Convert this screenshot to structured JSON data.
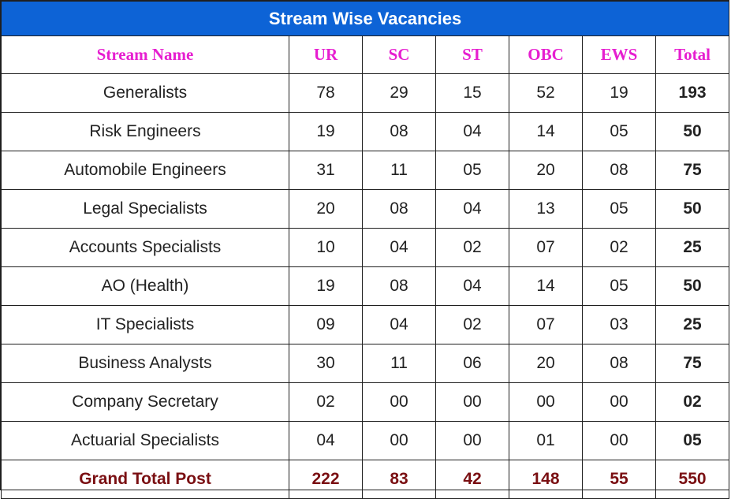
{
  "title": "Stream Wise Vacancies",
  "headers": [
    "Stream Name",
    "UR",
    "SC",
    "ST",
    "OBC",
    "EWS",
    "Total"
  ],
  "rows": [
    {
      "name": "Generalists",
      "ur": "78",
      "sc": "29",
      "st": "15",
      "obc": "52",
      "ews": "19",
      "total": "193"
    },
    {
      "name": "Risk  Engineers",
      "ur": "19",
      "sc": "08",
      "st": "04",
      "obc": "14",
      "ews": "05",
      "total": "50"
    },
    {
      "name": "Automobile Engineers",
      "ur": "31",
      "sc": "11",
      "st": "05",
      "obc": "20",
      "ews": "08",
      "total": "75"
    },
    {
      "name": "Legal Specialists",
      "ur": "20",
      "sc": "08",
      "st": "04",
      "obc": "13",
      "ews": "05",
      "total": "50"
    },
    {
      "name": "Accounts Specialists",
      "ur": "10",
      "sc": "04",
      "st": "02",
      "obc": "07",
      "ews": "02",
      "total": "25"
    },
    {
      "name": "AO (Health)",
      "ur": "19",
      "sc": "08",
      "st": "04",
      "obc": "14",
      "ews": "05",
      "total": "50"
    },
    {
      "name": "IT Specialists",
      "ur": "09",
      "sc": "04",
      "st": "02",
      "obc": "07",
      "ews": "03",
      "total": "25"
    },
    {
      "name": "Business Analysts",
      "ur": "30",
      "sc": "11",
      "st": "06",
      "obc": "20",
      "ews": "08",
      "total": "75"
    },
    {
      "name": "Company Secretary",
      "ur": "02",
      "sc": "00",
      "st": "00",
      "obc": "00",
      "ews": "00",
      "total": "02"
    },
    {
      "name": "Actuarial Specialists",
      "ur": "04",
      "sc": "00",
      "st": "00",
      "obc": "01",
      "ews": "00",
      "total": "05"
    }
  ],
  "grand_total": {
    "name": "Grand Total Post",
    "ur": "222",
    "sc": "83",
    "st": "42",
    "obc": "148",
    "ews": "55",
    "total": "550"
  },
  "colors": {
    "banner_bg": "#0d63d6",
    "header_text": "#e61ed0",
    "grand_total_text": "#7a0f12"
  }
}
